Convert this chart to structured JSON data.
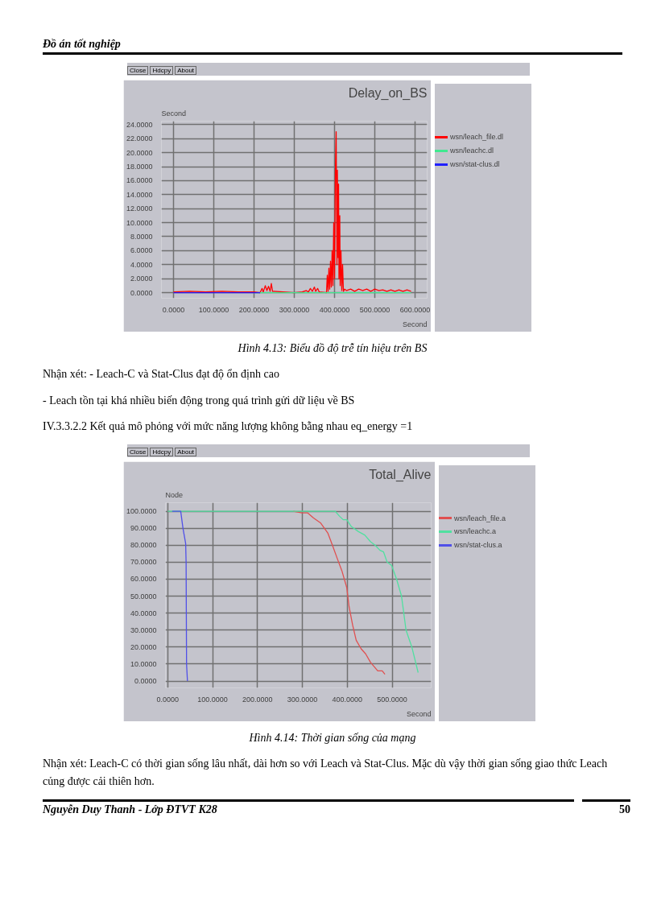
{
  "chart_data": [
    {
      "type": "line",
      "title": "Delay_on_BS",
      "ylabel": "Second",
      "xlabel": "Second",
      "annotations": [
        "Close",
        "Hdcpy",
        "About",
        "Đồ án tốt nghiệp",
        "Hình 4.13: Biểu đồ độ trễ tín hiệu trên BS",
        "Nhận xét: - Leach-C và Stat-Clus đạt độ ổn định cao",
        "- Leach tồn tại khá nhiều biến động trong quá trình gửi dữ liệu về BS",
        "IV.3.3.2.2 Kết quả mô phỏng với mức năng lượng không bằng nhau eq_energy =1"
      ],
      "series": [
        {
          "name": "wsn/leach_file.dl",
          "color": "#ff0000",
          "x": [
            0,
            40,
            80,
            120,
            160,
            200,
            215,
            220,
            223,
            228,
            232,
            236,
            240,
            243,
            246,
            250,
            300,
            320,
            330,
            335,
            340,
            345,
            350,
            353,
            358,
            362,
            380,
            382,
            384,
            386,
            388,
            390,
            392,
            394,
            396,
            398,
            400,
            402,
            404,
            406,
            407,
            409,
            410,
            411,
            413,
            414,
            416,
            418,
            420,
            422,
            425,
            430,
            440,
            450,
            460,
            470,
            480,
            490,
            500,
            510,
            520,
            530,
            540,
            550,
            560,
            570,
            580,
            590
          ],
          "values": [
            0.1,
            0.2,
            0.1,
            0.2,
            0.1,
            0.1,
            0,
            0.6,
            0.1,
            1.0,
            0.3,
            0.9,
            0.2,
            1.3,
            0.2,
            0.2,
            0,
            0.1,
            0.3,
            0.1,
            0.6,
            0.2,
            0.8,
            0.2,
            0.6,
            0.1,
            0,
            2.5,
            0.2,
            3.5,
            0.5,
            4.5,
            0.8,
            6,
            1,
            10,
            2,
            17,
            23,
            4,
            17.5,
            5,
            15.5,
            2,
            11,
            1,
            6,
            0.3,
            4,
            0.2,
            0.5,
            0.3,
            0.5,
            0.2,
            0.5,
            0.3,
            0.5,
            0.2,
            0.5,
            0.3,
            0.4,
            0.2,
            0.4,
            0.2,
            0.4,
            0.2,
            0.4,
            0.2
          ]
        },
        {
          "name": "wsn/leachc.dl",
          "color": "#40e890",
          "x": [
            200,
            590
          ],
          "values": [
            0,
            0
          ]
        },
        {
          "name": "wsn/stat-clus.dl",
          "color": "#2020ff",
          "x": [
            0,
            215
          ],
          "values": [
            0,
            0
          ]
        }
      ],
      "xlim": [
        -30,
        630
      ],
      "ylim": [
        -0.8,
        24.5
      ],
      "xticks": [
        {
          "value": 0,
          "label": "0.0000"
        },
        {
          "value": 100,
          "label": "100.0000"
        },
        {
          "value": 200,
          "label": "200.0000"
        },
        {
          "value": 300,
          "label": "300.0000"
        },
        {
          "value": 400,
          "label": "400.0000"
        },
        {
          "value": 500,
          "label": "500.0000"
        },
        {
          "value": 600,
          "label": "600.0000"
        }
      ],
      "yticks": [
        {
          "value": 0,
          "label": "0.0000"
        },
        {
          "value": 2,
          "label": "2.0000"
        },
        {
          "value": 4,
          "label": "4.0000"
        },
        {
          "value": 6,
          "label": "6.0000"
        },
        {
          "value": 8,
          "label": "8.0000"
        },
        {
          "value": 10,
          "label": "10.0000"
        },
        {
          "value": 12,
          "label": "12.0000"
        },
        {
          "value": 14,
          "label": "14.0000"
        },
        {
          "value": 16,
          "label": "16.0000"
        },
        {
          "value": 18,
          "label": "18.0000"
        },
        {
          "value": 20,
          "label": "20.0000"
        },
        {
          "value": 22,
          "label": "22.0000"
        },
        {
          "value": 24,
          "label": "24.0000"
        }
      ],
      "grid": true,
      "legend": "top right"
    },
    {
      "type": "line",
      "title": "Total_Alive",
      "ylabel": "Node",
      "xlabel": "Second",
      "annotations": [
        "Close",
        "Hdcpy",
        "About",
        "Hình 4.14: Thời gian sống của mạng",
        "Nhận xét: Leach-C có thời gian sống lâu nhất, dài hơn so với Leach và Stat-Clus. Mặc dù vậy thời gian sống giao thức Leach củng được cải thiên hơn.",
        "Nguyễn Duy Thanh - Lớp ĐTVT K28",
        "50"
      ],
      "series": [
        {
          "name": "wsn/leach_file.a",
          "color": "#e05050",
          "x": [
            280,
            299,
            312,
            325,
            341,
            357,
            367,
            378,
            388,
            399,
            404,
            412,
            420,
            431,
            441,
            452,
            468,
            478,
            484
          ],
          "values": [
            100,
            99,
            99,
            96,
            93,
            87,
            80,
            72,
            65,
            55,
            44,
            33,
            24,
            19,
            16,
            11,
            6,
            6,
            4
          ]
        },
        {
          "name": "wsn/leachc.a",
          "color": "#50e0a0",
          "x": [
            0,
            373,
            383,
            391,
            399,
            409,
            425,
            439,
            452,
            462,
            473,
            481,
            489,
            499,
            510,
            521,
            531,
            544,
            558
          ],
          "values": [
            100,
            100,
            97,
            95,
            95,
            91,
            88,
            86,
            82,
            80,
            77,
            76,
            70,
            68,
            60,
            50,
            30,
            20,
            5
          ]
        },
        {
          "name": "wsn/stat-clus.a",
          "color": "#5050e8",
          "x": [
            10,
            29,
            34,
            40,
            41,
            42,
            44
          ],
          "values": [
            100,
            100,
            90,
            81,
            70,
            10,
            0
          ]
        }
      ],
      "xlim": [
        -5,
        587
      ],
      "ylim": [
        -4,
        105
      ],
      "xticks": [
        {
          "value": 0,
          "label": "0.0000"
        },
        {
          "value": 100,
          "label": "100.0000"
        },
        {
          "value": 200,
          "label": "200.0000"
        },
        {
          "value": 300,
          "label": "300.0000"
        },
        {
          "value": 400,
          "label": "400.0000"
        },
        {
          "value": 500,
          "label": "500.0000"
        }
      ],
      "yticks": [
        {
          "value": 0,
          "label": "0.0000"
        },
        {
          "value": 10,
          "label": "10.0000"
        },
        {
          "value": 20,
          "label": "20.0000"
        },
        {
          "value": 30,
          "label": "30.0000"
        },
        {
          "value": 40,
          "label": "40.0000"
        },
        {
          "value": 50,
          "label": "50.0000"
        },
        {
          "value": 60,
          "label": "60.0000"
        },
        {
          "value": 70,
          "label": "70.0000"
        },
        {
          "value": 80,
          "label": "80.0000"
        },
        {
          "value": 90,
          "label": "90.0000"
        },
        {
          "value": 100,
          "label": "100.0000"
        }
      ],
      "grid": true,
      "legend": "top right"
    }
  ]
}
